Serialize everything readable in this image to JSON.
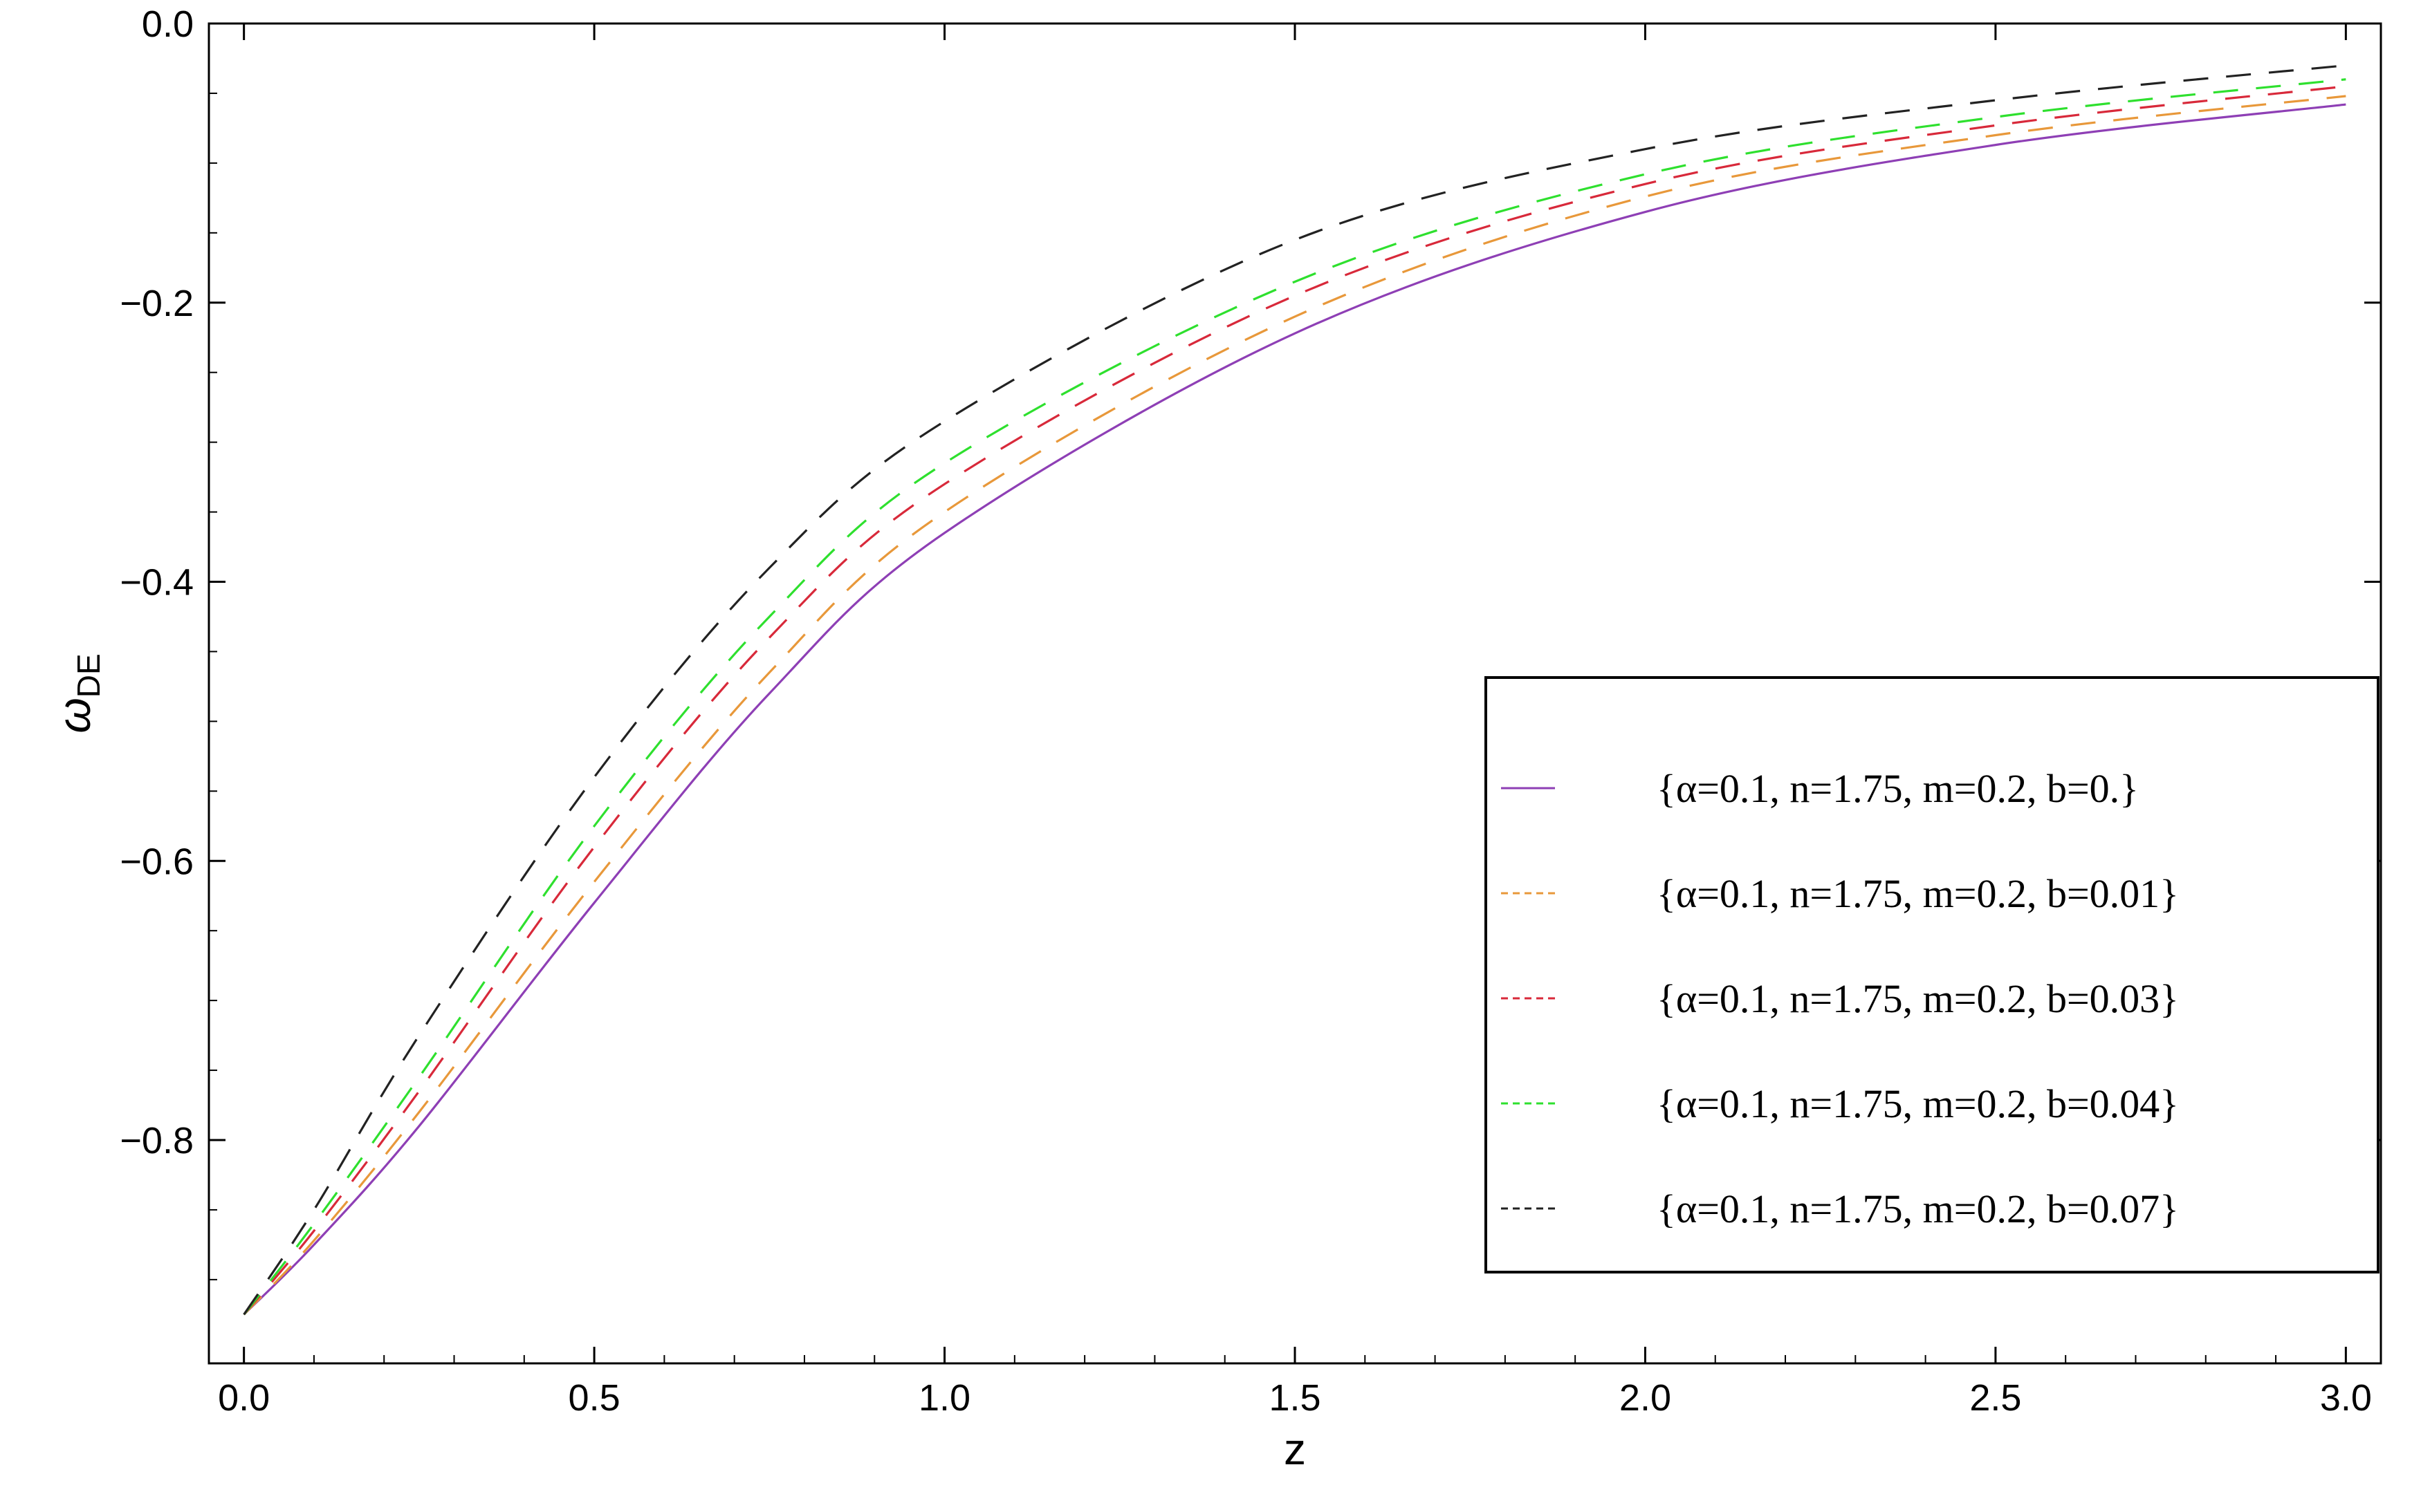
{
  "chart_data": {
    "type": "line",
    "title": "",
    "xlabel": "z",
    "ylabel": "ω",
    "ylabel_sub": "DE",
    "xlim": [
      -0.05,
      3.05
    ],
    "ylim": [
      -0.96,
      0.0
    ],
    "xticks": [
      {
        "value": 0.0,
        "label": "0.0"
      },
      {
        "value": 0.5,
        "label": "0.5"
      },
      {
        "value": 1.0,
        "label": "1.0"
      },
      {
        "value": 1.5,
        "label": "1.5"
      },
      {
        "value": 2.0,
        "label": "2.0"
      },
      {
        "value": 2.5,
        "label": "2.5"
      },
      {
        "value": 3.0,
        "label": "3.0"
      }
    ],
    "yticks": [
      {
        "value": 0.0,
        "label": "0.0"
      },
      {
        "value": -0.2,
        "label": "−0.2"
      },
      {
        "value": -0.4,
        "label": "−0.4"
      },
      {
        "value": -0.6,
        "label": "−0.6"
      },
      {
        "value": -0.8,
        "label": "−0.8"
      }
    ],
    "grid": false,
    "legend_position": "right",
    "series": [
      {
        "name": "{α=0.1, n=1.75, m=0.2, b=0.}",
        "color": "#8e3fb5",
        "style": "solid",
        "x": [
          0.0,
          0.1,
          0.25,
          0.5,
          0.75,
          1.0,
          1.5,
          2.0,
          2.5,
          3.0
        ],
        "y": [
          -0.925,
          -0.875,
          -0.79,
          -0.63,
          -0.48,
          -0.365,
          -0.222,
          -0.135,
          -0.087,
          -0.058
        ]
      },
      {
        "name": "{α=0.1, n=1.75, m=0.2, b=0.01}",
        "color": "#e8983a",
        "style": "dashed",
        "x": [
          0.0,
          0.1,
          0.25,
          0.5,
          0.75,
          1.0,
          1.5,
          2.0,
          2.5,
          3.0
        ],
        "y": [
          -0.925,
          -0.872,
          -0.78,
          -0.615,
          -0.465,
          -0.35,
          -0.21,
          -0.124,
          -0.08,
          -0.052
        ]
      },
      {
        "name": "{α=0.1, n=1.75, m=0.2, b=0.03}",
        "color": "#d8293a",
        "style": "dashed",
        "x": [
          0.0,
          0.1,
          0.25,
          0.5,
          0.75,
          1.0,
          1.5,
          2.0,
          2.5,
          3.0
        ],
        "y": [
          -0.925,
          -0.865,
          -0.765,
          -0.59,
          -0.44,
          -0.33,
          -0.195,
          -0.115,
          -0.073,
          -0.045
        ]
      },
      {
        "name": "{α=0.1, n=1.75, m=0.2, b=0.04}",
        "color": "#2ee02e",
        "style": "dashed",
        "x": [
          0.0,
          0.1,
          0.25,
          0.5,
          0.75,
          1.0,
          1.5,
          2.0,
          2.5,
          3.0
        ],
        "y": [
          -0.925,
          -0.86,
          -0.755,
          -0.575,
          -0.425,
          -0.315,
          -0.185,
          -0.108,
          -0.067,
          -0.04
        ]
      },
      {
        "name": "{α=0.1, n=1.75, m=0.2, b=0.07}",
        "color": "#222222",
        "style": "dashed",
        "x": [
          0.0,
          0.1,
          0.25,
          0.5,
          0.75,
          1.0,
          1.5,
          2.0,
          2.5,
          3.0
        ],
        "y": [
          -0.925,
          -0.85,
          -0.725,
          -0.54,
          -0.39,
          -0.285,
          -0.155,
          -0.09,
          -0.055,
          -0.03
        ]
      }
    ]
  }
}
